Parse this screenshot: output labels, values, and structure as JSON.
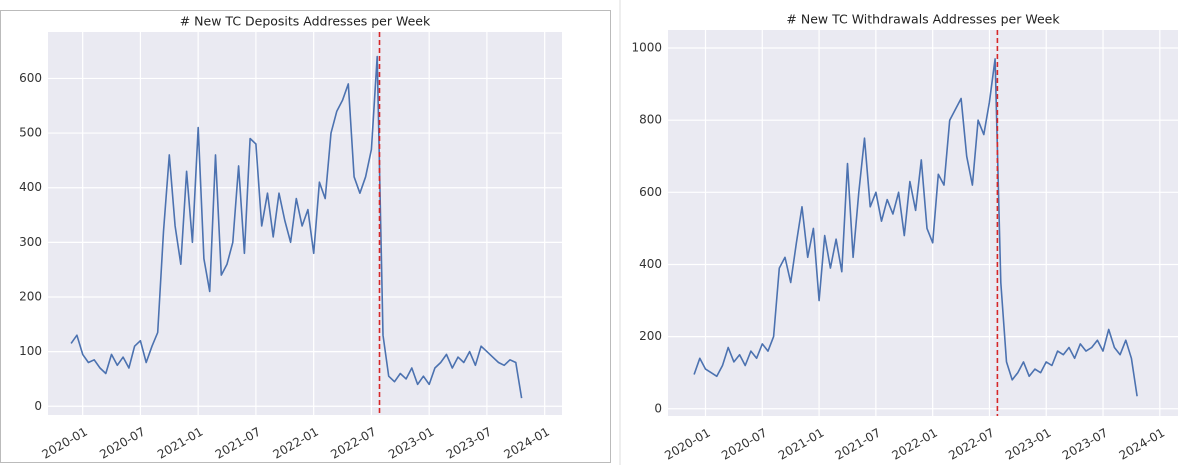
{
  "chart_data": [
    {
      "type": "line",
      "title": "# New TC Deposits Addresses per Week",
      "x": [
        2019.9,
        2019.95,
        2020.0,
        2020.05,
        2020.1,
        2020.15,
        2020.2,
        2020.25,
        2020.3,
        2020.35,
        2020.4,
        2020.45,
        2020.5,
        2020.55,
        2020.6,
        2020.65,
        2020.7,
        2020.75,
        2020.8,
        2020.85,
        2020.9,
        2020.95,
        2021.0,
        2021.05,
        2021.1,
        2021.15,
        2021.2,
        2021.25,
        2021.3,
        2021.35,
        2021.4,
        2021.45,
        2021.5,
        2021.55,
        2021.6,
        2021.65,
        2021.7,
        2021.75,
        2021.8,
        2021.85,
        2021.9,
        2021.95,
        2022.0,
        2022.05,
        2022.1,
        2022.15,
        2022.2,
        2022.25,
        2022.3,
        2022.35,
        2022.4,
        2022.45,
        2022.5,
        2022.55,
        2022.6,
        2022.65,
        2022.7,
        2022.75,
        2022.8,
        2022.85,
        2022.9,
        2022.95,
        2023.0,
        2023.05,
        2023.1,
        2023.15,
        2023.2,
        2023.25,
        2023.3,
        2023.35,
        2023.4,
        2023.45,
        2023.5,
        2023.55,
        2023.6,
        2023.65,
        2023.7,
        2023.75,
        2023.8
      ],
      "series": [
        {
          "name": "deposits",
          "color": "#4c72b0",
          "values": [
            115,
            130,
            95,
            80,
            85,
            70,
            60,
            95,
            75,
            90,
            70,
            110,
            120,
            80,
            110,
            135,
            320,
            460,
            330,
            260,
            430,
            300,
            510,
            270,
            210,
            460,
            240,
            260,
            300,
            440,
            280,
            490,
            480,
            330,
            390,
            310,
            390,
            340,
            300,
            380,
            330,
            360,
            280,
            410,
            380,
            500,
            540,
            560,
            590,
            420,
            390,
            420,
            470,
            640,
            130,
            55,
            45,
            60,
            50,
            70,
            40,
            55,
            40,
            70,
            80,
            95,
            70,
            90,
            80,
            100,
            75,
            110,
            100,
            90,
            80,
            75,
            85,
            80,
            15
          ]
        }
      ],
      "vline": {
        "value": 2022.57,
        "color": "#d62728"
      },
      "xlim": [
        2019.7,
        2024.15
      ],
      "xticks": [
        {
          "value": 2020.0,
          "label": "2020-01"
        },
        {
          "value": 2020.5,
          "label": "2020-07"
        },
        {
          "value": 2021.0,
          "label": "2021-01"
        },
        {
          "value": 2021.5,
          "label": "2021-07"
        },
        {
          "value": 2022.0,
          "label": "2022-01"
        },
        {
          "value": 2022.5,
          "label": "2022-07"
        },
        {
          "value": 2023.0,
          "label": "2023-01"
        },
        {
          "value": 2023.5,
          "label": "2023-07"
        },
        {
          "value": 2024.0,
          "label": "2024-01"
        }
      ],
      "ylim": [
        -16,
        685
      ],
      "yticks": [
        0,
        100,
        200,
        300,
        400,
        500,
        600
      ],
      "grid": true
    },
    {
      "type": "line",
      "title": "# New TC Withdrawals Addresses per Week",
      "x": [
        2019.9,
        2019.95,
        2020.0,
        2020.05,
        2020.1,
        2020.15,
        2020.2,
        2020.25,
        2020.3,
        2020.35,
        2020.4,
        2020.45,
        2020.5,
        2020.55,
        2020.6,
        2020.65,
        2020.7,
        2020.75,
        2020.8,
        2020.85,
        2020.9,
        2020.95,
        2021.0,
        2021.05,
        2021.1,
        2021.15,
        2021.2,
        2021.25,
        2021.3,
        2021.35,
        2021.4,
        2021.45,
        2021.5,
        2021.55,
        2021.6,
        2021.65,
        2021.7,
        2021.75,
        2021.8,
        2021.85,
        2021.9,
        2021.95,
        2022.0,
        2022.05,
        2022.1,
        2022.15,
        2022.2,
        2022.25,
        2022.3,
        2022.35,
        2022.4,
        2022.45,
        2022.5,
        2022.55,
        2022.6,
        2022.65,
        2022.7,
        2022.75,
        2022.8,
        2022.85,
        2022.9,
        2022.95,
        2023.0,
        2023.05,
        2023.1,
        2023.15,
        2023.2,
        2023.25,
        2023.3,
        2023.35,
        2023.4,
        2023.45,
        2023.5,
        2023.55,
        2023.6,
        2023.65,
        2023.7,
        2023.75,
        2023.8
      ],
      "series": [
        {
          "name": "withdrawals",
          "color": "#4c72b0",
          "values": [
            95,
            140,
            110,
            100,
            90,
            120,
            170,
            130,
            150,
            120,
            160,
            140,
            180,
            160,
            200,
            390,
            420,
            350,
            460,
            560,
            420,
            500,
            300,
            480,
            390,
            470,
            380,
            680,
            420,
            600,
            750,
            560,
            600,
            520,
            580,
            540,
            600,
            480,
            630,
            550,
            690,
            500,
            460,
            650,
            620,
            800,
            830,
            860,
            700,
            620,
            800,
            760,
            850,
            970,
            350,
            130,
            80,
            100,
            130,
            90,
            110,
            100,
            130,
            120,
            160,
            150,
            170,
            140,
            180,
            160,
            170,
            190,
            160,
            220,
            170,
            150,
            190,
            140,
            35
          ]
        }
      ],
      "vline": {
        "value": 2022.57,
        "color": "#d62728"
      },
      "xlim": [
        2019.67,
        2024.16
      ],
      "xticks": [
        {
          "value": 2020.0,
          "label": "2020-01"
        },
        {
          "value": 2020.5,
          "label": "2020-07"
        },
        {
          "value": 2021.0,
          "label": "2021-01"
        },
        {
          "value": 2021.5,
          "label": "2021-07"
        },
        {
          "value": 2022.0,
          "label": "2022-01"
        },
        {
          "value": 2022.5,
          "label": "2022-07"
        },
        {
          "value": 2023.0,
          "label": "2023-01"
        },
        {
          "value": 2023.5,
          "label": "2023-07"
        },
        {
          "value": 2024.0,
          "label": "2024-01"
        }
      ],
      "ylim": [
        -20,
        1050
      ],
      "yticks": [
        0,
        200,
        400,
        600,
        800,
        1000
      ],
      "grid": true
    }
  ]
}
